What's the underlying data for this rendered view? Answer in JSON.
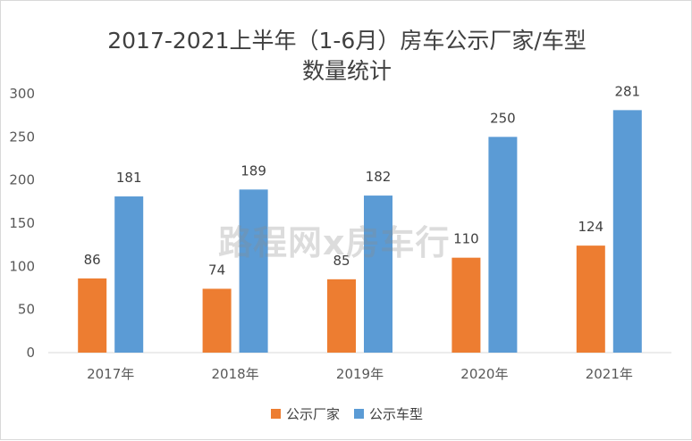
{
  "chart_data": {
    "type": "bar",
    "title_line1": "2017-2021上半年（1-6月）房车公示厂家/车型",
    "title_line2": "数量统计",
    "categories": [
      "2017年",
      "2018年",
      "2019年",
      "2020年",
      "2021年"
    ],
    "series": [
      {
        "name": "公示厂家",
        "color": "#ed7d31",
        "values": [
          86,
          74,
          85,
          110,
          124
        ]
      },
      {
        "name": "公示车型",
        "color": "#5b9bd5",
        "values": [
          181,
          189,
          182,
          250,
          281
        ]
      }
    ],
    "ylim": [
      0,
      300
    ],
    "yticks": [
      0,
      50,
      100,
      150,
      200,
      250,
      300
    ],
    "grid": false,
    "legend_position": "bottom",
    "watermark": "路程网x房车行"
  }
}
